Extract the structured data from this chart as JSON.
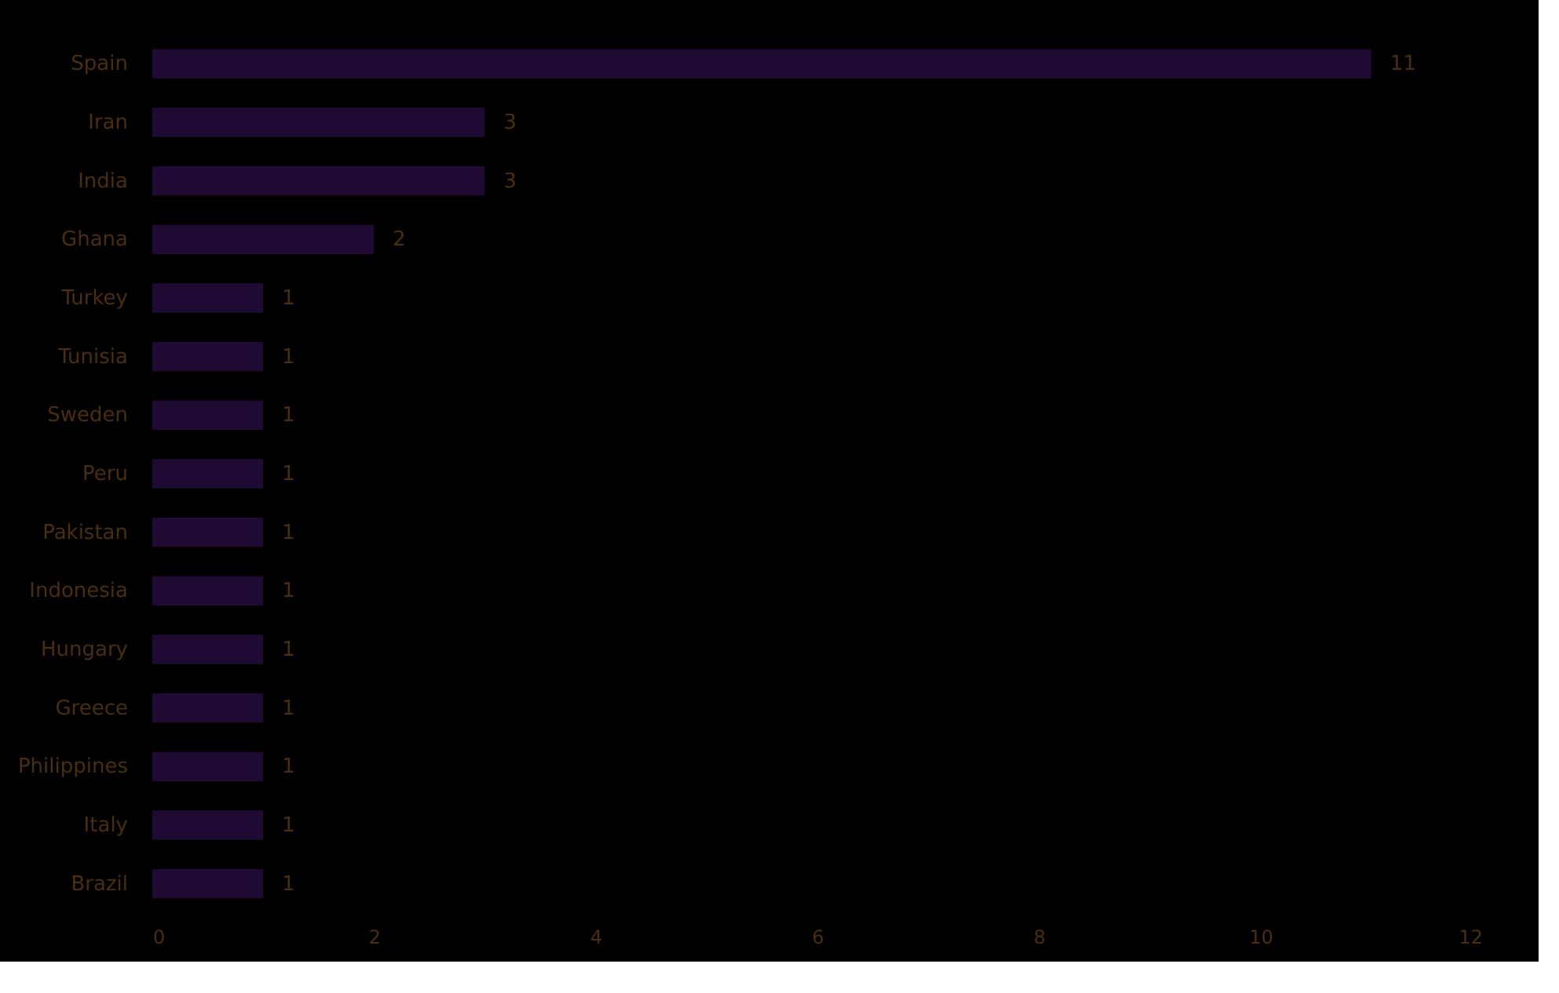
{
  "chart_data": {
    "type": "bar",
    "orientation": "horizontal",
    "categories": [
      "Spain",
      "Iran",
      "India",
      "Ghana",
      "Turkey",
      "Tunisia",
      "Sweden",
      "Peru",
      "Pakistan",
      "Indonesia",
      "Hungary",
      "Greece",
      "Philippines",
      "Italy",
      "Brazil"
    ],
    "values": [
      11,
      3,
      3,
      2,
      1,
      1,
      1,
      1,
      1,
      1,
      1,
      1,
      1,
      1,
      1
    ],
    "color": "#1e0a33",
    "xlim": [
      0,
      12
    ],
    "xticks": [
      0,
      2,
      4,
      6,
      8,
      10,
      12
    ],
    "data_labels": true,
    "grid": false
  }
}
